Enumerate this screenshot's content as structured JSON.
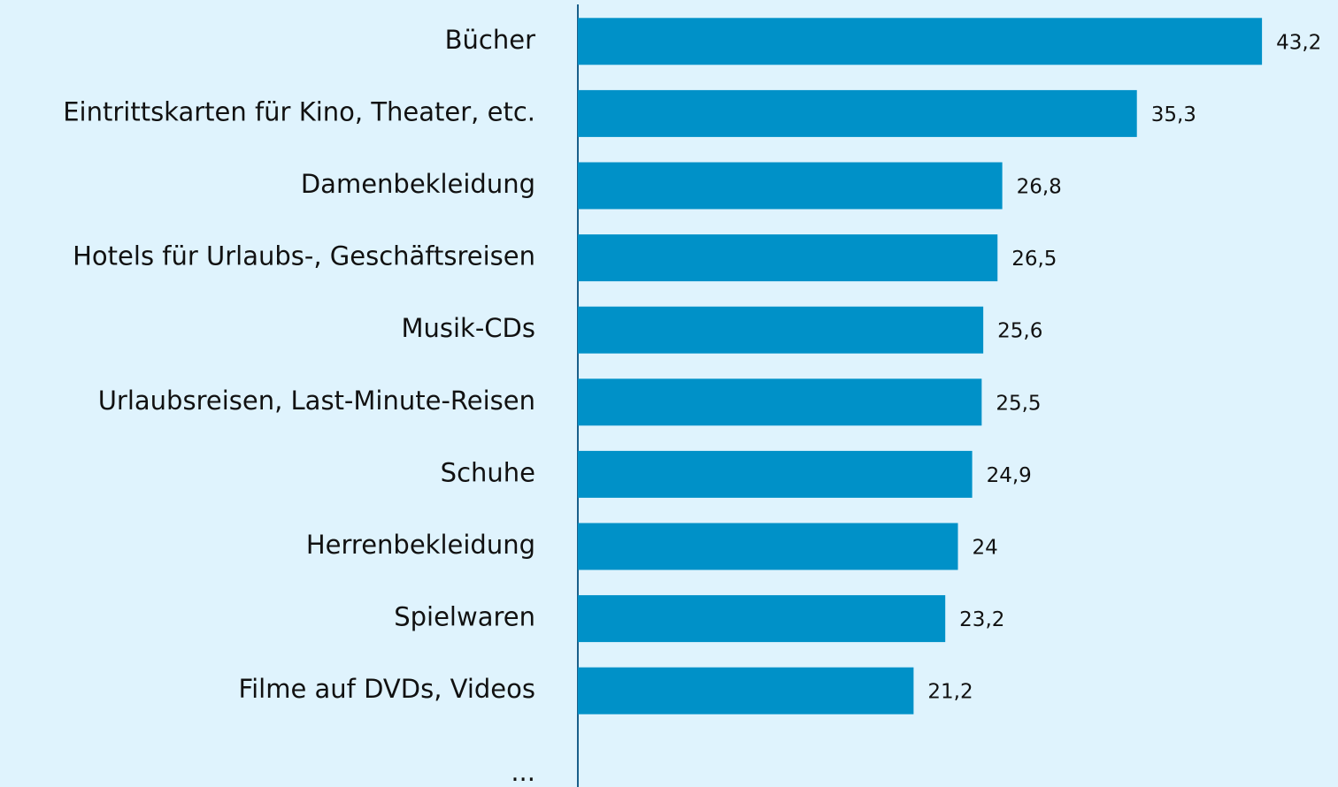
{
  "chart_data": {
    "type": "barh",
    "categories": [
      "Bücher",
      "Eintrittskarten für Kino, Theater, etc.",
      "Damenbekleidung",
      "Hotels für Urlaubs-, Geschäftsreisen",
      "Musik-CDs",
      "Urlaubsreisen, Last-Minute-Reisen",
      "Schuhe",
      "Herrenbekleidung",
      "Spielwaren",
      "Filme auf DVDs, Videos",
      "..."
    ],
    "values": [
      43.2,
      35.3,
      26.8,
      26.5,
      25.6,
      25.5,
      24.9,
      24,
      23.2,
      21.2,
      null
    ],
    "value_labels": [
      "43,2",
      "35,3",
      "26,8",
      "26,5",
      "25,6",
      "25,5",
      "24,9",
      "24",
      "23,2",
      "21,2",
      null
    ],
    "color": "#0091c8",
    "xlim": [
      0,
      48
    ]
  }
}
